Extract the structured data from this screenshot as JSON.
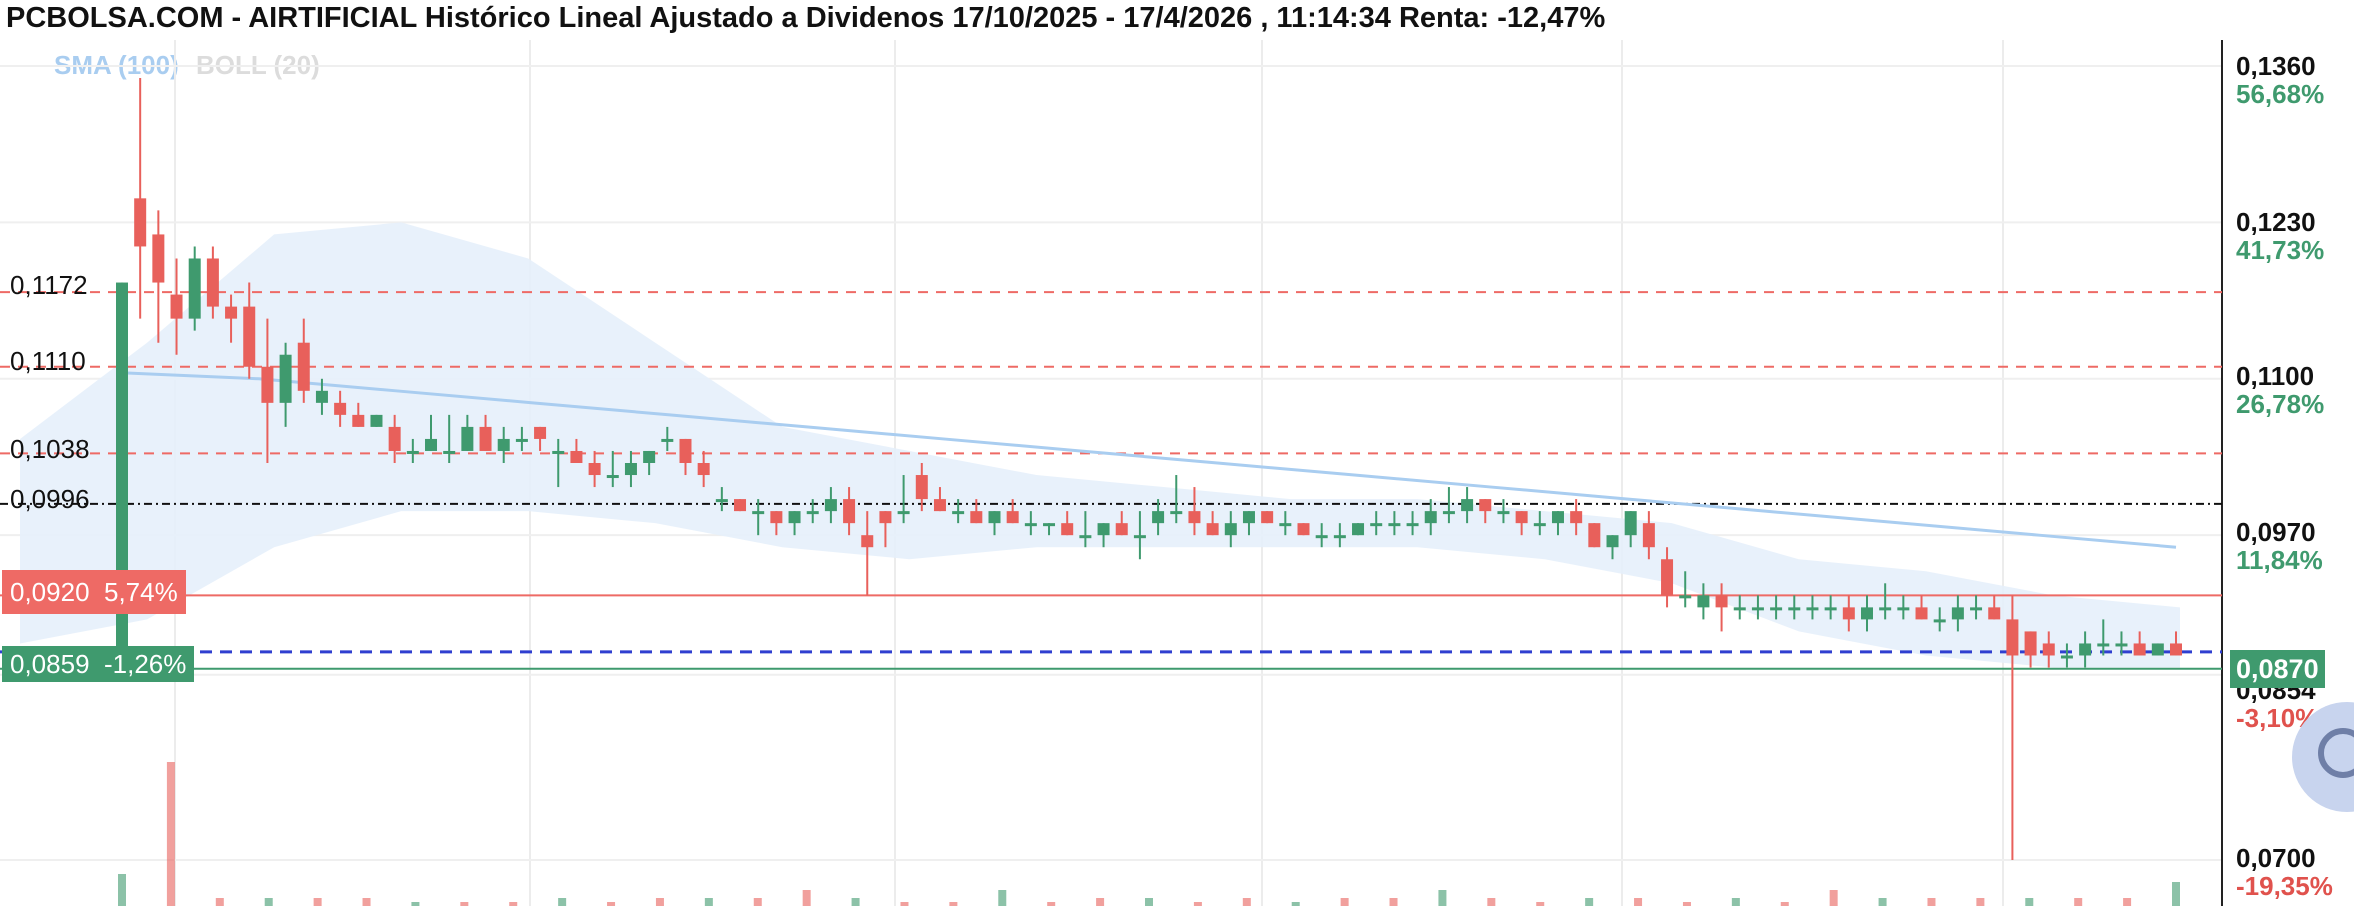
{
  "title": "PCBOLSA.COM - AIRTIFICIAL Histórico Lineal Ajustado a Dividenos 17/10/2025 - 17/4/2026 , 11:14:34 Renta: -12,47%",
  "legend": {
    "sma": "SMA (100)",
    "boll": "BOLL (20)"
  },
  "levels": [
    {
      "label": "0,1172",
      "value": 0.1172,
      "style": "red-dashed"
    },
    {
      "label": "0,1110",
      "value": 0.111,
      "style": "red-dashed"
    },
    {
      "label": "0,1038",
      "value": 0.1038,
      "style": "red-dashed"
    },
    {
      "label": "0,0996",
      "value": 0.0996,
      "style": "black-dashdot"
    }
  ],
  "price_boxes": {
    "red": {
      "price": "0,0920",
      "pct": "5,74%",
      "value": 0.092
    },
    "green": {
      "price": "0,0859",
      "pct": "-1,26%",
      "value": 0.0859
    }
  },
  "blue_dashed_level": 0.0873,
  "right_axis": [
    {
      "price": "0,1360",
      "pct": "56,68%",
      "pct_color": "#3f9a6e"
    },
    {
      "price": "0,1230",
      "pct": "41,73%",
      "pct_color": "#3f9a6e"
    },
    {
      "price": "0,1100",
      "pct": "26,78%",
      "pct_color": "#3f9a6e"
    },
    {
      "price": "0,0970",
      "pct": "11,84%",
      "pct_color": "#3f9a6e"
    },
    {
      "price": "0,0854",
      "pct": "-3,10%",
      "pct_color": "#e0524d"
    },
    {
      "price": "0,0700",
      "pct": "-19,35%",
      "pct_color": "#e0524d"
    }
  ],
  "current_price": "0,0870",
  "colors": {
    "up": "#3f9a6e",
    "down": "#e8605b",
    "sma": "#a9cdf0",
    "boll_fill": "#e6f0fb",
    "level_red": "#ee6a65"
  },
  "chart_data": {
    "type": "candlestick",
    "title": "PCBOLSA.COM - AIRTIFICIAL Histórico Lineal Ajustado a Dividenos 17/10/2025 - 17/4/2026 , 11:14:34 Renta: -12,47%",
    "ylim": [
      0.07,
      0.136
    ],
    "series_names": [
      "SMA (100)",
      "BOLL (20)"
    ],
    "candles": [
      [
        0.087,
        0.118,
        0.086,
        0.118
      ],
      [
        0.125,
        0.135,
        0.115,
        0.121
      ],
      [
        0.122,
        0.124,
        0.113,
        0.118
      ],
      [
        0.117,
        0.12,
        0.112,
        0.115
      ],
      [
        0.115,
        0.121,
        0.114,
        0.12
      ],
      [
        0.12,
        0.121,
        0.115,
        0.116
      ],
      [
        0.116,
        0.117,
        0.113,
        0.115
      ],
      [
        0.116,
        0.118,
        0.11,
        0.111
      ],
      [
        0.111,
        0.115,
        0.103,
        0.108
      ],
      [
        0.108,
        0.113,
        0.106,
        0.112
      ],
      [
        0.113,
        0.115,
        0.108,
        0.109
      ],
      [
        0.108,
        0.11,
        0.107,
        0.109
      ],
      [
        0.108,
        0.109,
        0.106,
        0.107
      ],
      [
        0.107,
        0.108,
        0.106,
        0.106
      ],
      [
        0.106,
        0.107,
        0.106,
        0.107
      ],
      [
        0.106,
        0.107,
        0.103,
        0.104
      ],
      [
        0.104,
        0.105,
        0.103,
        0.104
      ],
      [
        0.104,
        0.107,
        0.104,
        0.105
      ],
      [
        0.104,
        0.107,
        0.103,
        0.104
      ],
      [
        0.104,
        0.107,
        0.104,
        0.106
      ],
      [
        0.106,
        0.107,
        0.104,
        0.104
      ],
      [
        0.104,
        0.106,
        0.103,
        0.105
      ],
      [
        0.105,
        0.106,
        0.104,
        0.105
      ],
      [
        0.106,
        0.106,
        0.104,
        0.105
      ],
      [
        0.104,
        0.105,
        0.101,
        0.104
      ],
      [
        0.104,
        0.105,
        0.103,
        0.103
      ],
      [
        0.103,
        0.104,
        0.101,
        0.102
      ],
      [
        0.102,
        0.104,
        0.101,
        0.102
      ],
      [
        0.102,
        0.104,
        0.101,
        0.103
      ],
      [
        0.103,
        0.104,
        0.102,
        0.104
      ],
      [
        0.105,
        0.106,
        0.104,
        0.105
      ],
      [
        0.105,
        0.105,
        0.102,
        0.103
      ],
      [
        0.103,
        0.104,
        0.101,
        0.102
      ],
      [
        0.1,
        0.101,
        0.099,
        0.1
      ],
      [
        0.1,
        0.1,
        0.099,
        0.099
      ],
      [
        0.099,
        0.1,
        0.097,
        0.099
      ],
      [
        0.099,
        0.099,
        0.097,
        0.098
      ],
      [
        0.098,
        0.099,
        0.097,
        0.099
      ],
      [
        0.099,
        0.1,
        0.098,
        0.099
      ],
      [
        0.099,
        0.101,
        0.098,
        0.1
      ],
      [
        0.1,
        0.101,
        0.097,
        0.098
      ],
      [
        0.097,
        0.099,
        0.092,
        0.096
      ],
      [
        0.099,
        0.099,
        0.096,
        0.098
      ],
      [
        0.099,
        0.102,
        0.098,
        0.099
      ],
      [
        0.102,
        0.103,
        0.099,
        0.1
      ],
      [
        0.1,
        0.101,
        0.099,
        0.099
      ],
      [
        0.099,
        0.1,
        0.098,
        0.099
      ],
      [
        0.099,
        0.1,
        0.098,
        0.098
      ],
      [
        0.098,
        0.099,
        0.097,
        0.099
      ],
      [
        0.099,
        0.1,
        0.098,
        0.098
      ],
      [
        0.098,
        0.099,
        0.097,
        0.098
      ],
      [
        0.098,
        0.098,
        0.097,
        0.098
      ],
      [
        0.098,
        0.099,
        0.097,
        0.097
      ],
      [
        0.097,
        0.099,
        0.096,
        0.097
      ],
      [
        0.097,
        0.098,
        0.096,
        0.098
      ],
      [
        0.098,
        0.099,
        0.097,
        0.097
      ],
      [
        0.097,
        0.099,
        0.095,
        0.097
      ],
      [
        0.098,
        0.1,
        0.097,
        0.099
      ],
      [
        0.099,
        0.102,
        0.098,
        0.099
      ],
      [
        0.099,
        0.101,
        0.097,
        0.098
      ],
      [
        0.098,
        0.099,
        0.097,
        0.097
      ],
      [
        0.097,
        0.099,
        0.096,
        0.098
      ],
      [
        0.098,
        0.099,
        0.097,
        0.099
      ],
      [
        0.099,
        0.099,
        0.098,
        0.098
      ],
      [
        0.098,
        0.099,
        0.097,
        0.098
      ],
      [
        0.098,
        0.098,
        0.097,
        0.097
      ],
      [
        0.097,
        0.098,
        0.096,
        0.097
      ],
      [
        0.097,
        0.098,
        0.096,
        0.097
      ],
      [
        0.097,
        0.098,
        0.097,
        0.098
      ],
      [
        0.098,
        0.099,
        0.097,
        0.098
      ],
      [
        0.098,
        0.099,
        0.097,
        0.098
      ],
      [
        0.098,
        0.099,
        0.097,
        0.098
      ],
      [
        0.098,
        0.1,
        0.097,
        0.099
      ],
      [
        0.099,
        0.101,
        0.098,
        0.099
      ],
      [
        0.099,
        0.101,
        0.098,
        0.1
      ],
      [
        0.1,
        0.1,
        0.098,
        0.099
      ],
      [
        0.099,
        0.1,
        0.098,
        0.099
      ],
      [
        0.099,
        0.099,
        0.097,
        0.098
      ],
      [
        0.098,
        0.099,
        0.097,
        0.098
      ],
      [
        0.098,
        0.099,
        0.097,
        0.099
      ],
      [
        0.099,
        0.1,
        0.097,
        0.098
      ],
      [
        0.098,
        0.098,
        0.096,
        0.096
      ],
      [
        0.096,
        0.097,
        0.095,
        0.097
      ],
      [
        0.097,
        0.099,
        0.096,
        0.099
      ],
      [
        0.098,
        0.099,
        0.095,
        0.096
      ],
      [
        0.095,
        0.096,
        0.091,
        0.092
      ],
      [
        0.092,
        0.094,
        0.091,
        0.092
      ],
      [
        0.091,
        0.093,
        0.09,
        0.092
      ],
      [
        0.092,
        0.093,
        0.089,
        0.091
      ],
      [
        0.091,
        0.092,
        0.09,
        0.091
      ],
      [
        0.091,
        0.092,
        0.09,
        0.091
      ],
      [
        0.091,
        0.092,
        0.09,
        0.091
      ],
      [
        0.091,
        0.092,
        0.09,
        0.091
      ],
      [
        0.091,
        0.092,
        0.09,
        0.091
      ],
      [
        0.091,
        0.092,
        0.09,
        0.091
      ],
      [
        0.091,
        0.092,
        0.089,
        0.09
      ],
      [
        0.09,
        0.092,
        0.089,
        0.091
      ],
      [
        0.091,
        0.093,
        0.09,
        0.091
      ],
      [
        0.091,
        0.092,
        0.09,
        0.091
      ],
      [
        0.091,
        0.092,
        0.09,
        0.09
      ],
      [
        0.09,
        0.091,
        0.089,
        0.09
      ],
      [
        0.09,
        0.092,
        0.089,
        0.091
      ],
      [
        0.091,
        0.092,
        0.09,
        0.091
      ],
      [
        0.091,
        0.092,
        0.09,
        0.09
      ],
      [
        0.09,
        0.092,
        0.07,
        0.087
      ],
      [
        0.089,
        0.089,
        0.086,
        0.087
      ],
      [
        0.088,
        0.089,
        0.086,
        0.087
      ],
      [
        0.087,
        0.088,
        0.086,
        0.087
      ],
      [
        0.087,
        0.089,
        0.086,
        0.088
      ],
      [
        0.088,
        0.09,
        0.087,
        0.088
      ],
      [
        0.088,
        0.089,
        0.087,
        0.088
      ],
      [
        0.088,
        0.089,
        0.087,
        0.087
      ],
      [
        0.087,
        0.088,
        0.087,
        0.088
      ],
      [
        0.088,
        0.089,
        0.087,
        0.087
      ]
    ],
    "sma_100": [
      0.1105,
      0.11,
      0.109,
      0.108,
      0.107,
      0.106,
      0.105,
      0.104,
      0.103,
      0.102,
      0.101,
      0.1,
      0.099,
      0.098,
      0.097,
      0.096
    ],
    "boll_upper": [
      0.105,
      0.113,
      0.122,
      0.123,
      0.12,
      0.113,
      0.106,
      0.104,
      0.102,
      0.101,
      0.1,
      0.1,
      0.099,
      0.098,
      0.095,
      0.094,
      0.092,
      0.091
    ],
    "boll_lower": [
      0.088,
      0.09,
      0.096,
      0.099,
      0.099,
      0.098,
      0.096,
      0.095,
      0.096,
      0.096,
      0.096,
      0.096,
      0.095,
      0.093,
      0.089,
      0.087,
      0.086,
      0.086
    ],
    "volume": [
      4,
      18,
      1,
      1,
      1,
      1,
      0.5,
      0.5,
      0.5,
      1,
      0.5,
      1,
      1,
      1,
      2,
      1,
      0.5,
      0.5,
      2,
      0.5,
      1,
      1,
      0.5,
      1,
      0.5,
      1,
      1,
      2,
      1,
      0.5,
      1,
      1,
      0.5,
      1,
      0.5,
      2,
      1,
      1,
      1,
      1,
      1,
      1,
      3
    ]
  }
}
